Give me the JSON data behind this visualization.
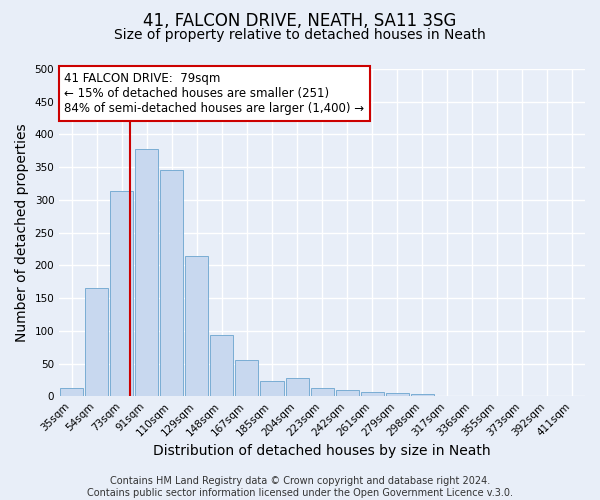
{
  "title": "41, FALCON DRIVE, NEATH, SA11 3SG",
  "subtitle": "Size of property relative to detached houses in Neath",
  "xlabel": "Distribution of detached houses by size in Neath",
  "ylabel": "Number of detached properties",
  "bar_labels": [
    "35sqm",
    "54sqm",
    "73sqm",
    "91sqm",
    "110sqm",
    "129sqm",
    "148sqm",
    "167sqm",
    "185sqm",
    "204sqm",
    "223sqm",
    "242sqm",
    "261sqm",
    "279sqm",
    "298sqm",
    "317sqm",
    "336sqm",
    "355sqm",
    "373sqm",
    "392sqm",
    "411sqm"
  ],
  "bar_values": [
    12,
    165,
    313,
    378,
    345,
    215,
    93,
    55,
    23,
    28,
    13,
    10,
    7,
    5,
    3,
    1,
    0,
    0,
    0,
    1,
    1
  ],
  "bar_color": "#c8d8ef",
  "bar_edge_color": "#7aadd4",
  "ylim": [
    0,
    500
  ],
  "yticks": [
    0,
    50,
    100,
    150,
    200,
    250,
    300,
    350,
    400,
    450,
    500
  ],
  "vline_color": "#cc0000",
  "vline_pos": 2.33,
  "annotation_title": "41 FALCON DRIVE:  79sqm",
  "annotation_line1": "← 15% of detached houses are smaller (251)",
  "annotation_line2": "84% of semi-detached houses are larger (1,400) →",
  "annotation_box_facecolor": "#ffffff",
  "annotation_box_edgecolor": "#cc0000",
  "footer_line1": "Contains HM Land Registry data © Crown copyright and database right 2024.",
  "footer_line2": "Contains public sector information licensed under the Open Government Licence v.3.0.",
  "bg_color": "#e8eef8",
  "plot_bg_color": "#e8eef8",
  "grid_color": "#ffffff",
  "title_fontsize": 12,
  "subtitle_fontsize": 10,
  "axis_label_fontsize": 10,
  "tick_fontsize": 7.5,
  "annotation_fontsize": 8.5,
  "footer_fontsize": 7
}
